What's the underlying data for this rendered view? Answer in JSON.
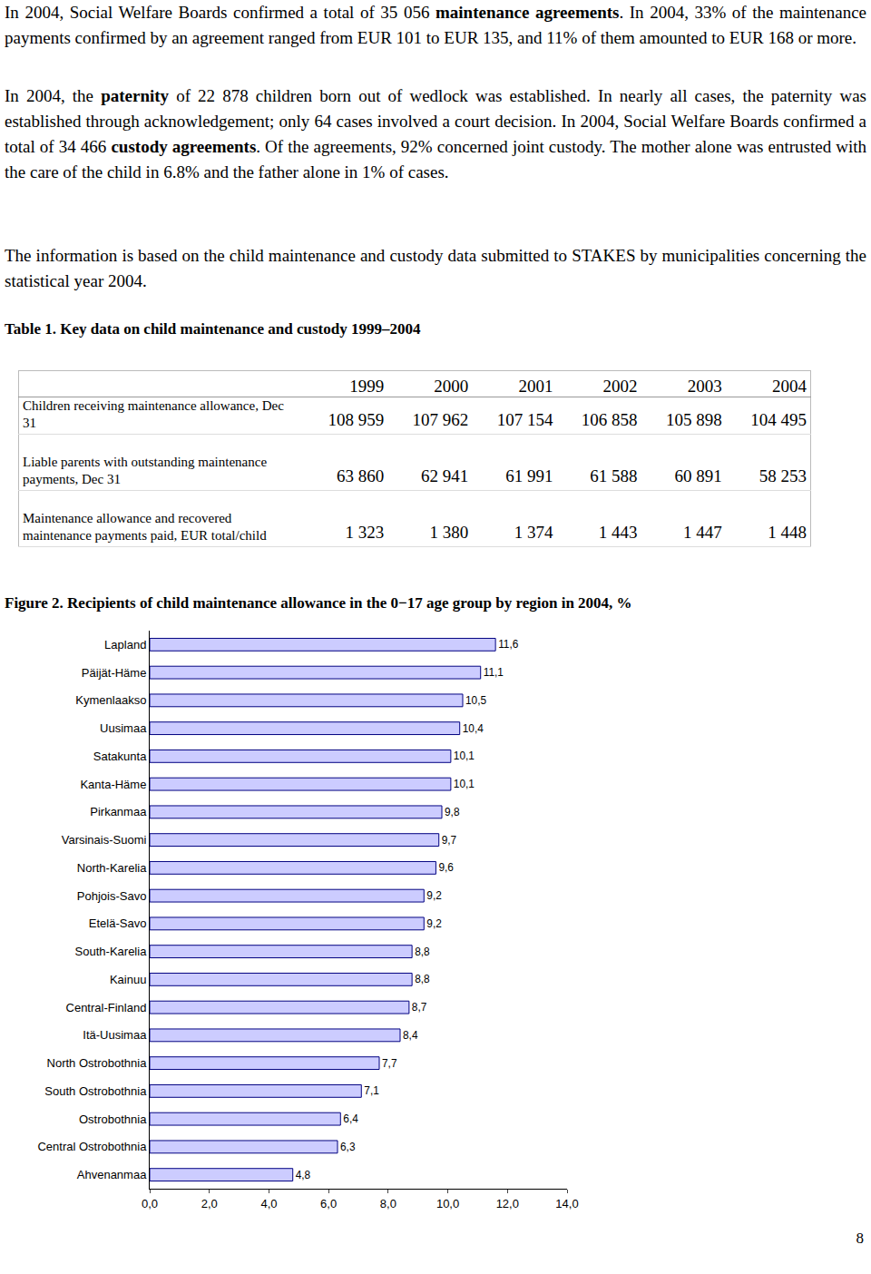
{
  "paragraphs": [
    [
      {
        "text": "In 2004, Social Welfare Boards confirmed a total of 35 056 ",
        "bold": false
      },
      {
        "text": "maintenance agreements",
        "bold": true
      },
      {
        "text": ". In 2004, 33% of the maintenance payments confirmed by an agreement ranged from EUR 101 to EUR 135, and 11% of them amounted to EUR 168 or more.",
        "bold": false
      }
    ],
    [
      {
        "text": "In 2004, the ",
        "bold": false
      },
      {
        "text": "paternity",
        "bold": true
      },
      {
        "text": " of 22 878 children born out of wedlock was established. In nearly all cases, the paternity was established through acknowledgement; only 64 cases involved a court decision. In 2004, Social Welfare Boards confirmed a total of 34 466 ",
        "bold": false
      },
      {
        "text": "custody agreements",
        "bold": true
      },
      {
        "text": ". Of the agreements, 92% concerned joint custody. The mother alone was entrusted with the care of the child in 6.8% and the father alone in 1% of cases.",
        "bold": false
      }
    ],
    [
      {
        "text": "The information is based on the child maintenance and custody data submitted to STAKES by municipalities concerning the statistical year 2004.",
        "bold": false
      }
    ]
  ],
  "table": {
    "title": "Table 1. Key data on child maintenance and custody 1999–2004",
    "header": [
      "1999",
      "2000",
      "2001",
      "2002",
      "2003",
      "2004"
    ],
    "rows": [
      [
        "Children receiving maintenance allowance, Dec 31",
        "108 959",
        "107 962",
        "107 154",
        "106 858",
        "105 898",
        "104 495"
      ],
      [
        "Liable parents with outstanding maintenance payments, Dec 31",
        "63 860",
        "62 941",
        "61 991",
        "61 588",
        "60 891",
        "58 253"
      ],
      [
        "Maintenance allowance and recovered maintenance payments paid, EUR total/child",
        "1 323",
        "1 380",
        "1 374",
        "1 443",
        "1 447",
        "1 448"
      ]
    ]
  },
  "chart_data": {
    "type": "bar",
    "title": "Figure 2. Recipients of child maintenance allowance in the 0−17 age group by region in 2004, %",
    "orientation": "horizontal",
    "categories": [
      "Lapland",
      "Päijät-Häme",
      "Kymenlaakso",
      "Uusimaa",
      "Satakunta",
      "Kanta-Häme",
      "Pirkanmaa",
      "Varsinais-Suomi",
      "North-Karelia",
      "Pohjois-Savo",
      "Etelä-Savo",
      "South-Karelia",
      "Kainuu",
      "Central-Finland",
      "Itä-Uusimaa",
      "North Ostrobothnia",
      "South Ostrobothnia",
      "Ostrobothnia",
      "Central Ostrobothnia",
      "Ahvenanmaa"
    ],
    "values": [
      11.6,
      11.1,
      10.5,
      10.4,
      10.1,
      10.1,
      9.8,
      9.7,
      9.6,
      9.2,
      9.2,
      8.8,
      8.8,
      8.7,
      8.4,
      7.7,
      7.1,
      6.4,
      6.3,
      4.8
    ],
    "value_labels": [
      "11,6",
      "11,1",
      "10,5",
      "10,4",
      "10,1",
      "10,1",
      "9,8",
      "9,7",
      "9,6",
      "9,2",
      "9,2",
      "8,8",
      "8,8",
      "8,7",
      "8,4",
      "7,7",
      "7,1",
      "6,4",
      "6,3",
      "4,8"
    ],
    "data_labels": true,
    "color": "#ccccff",
    "xlim": [
      0,
      14
    ],
    "xticks": [
      {
        "value": 0,
        "label": "0,0"
      },
      {
        "value": 2,
        "label": "2,0"
      },
      {
        "value": 4,
        "label": "4,0"
      },
      {
        "value": 6,
        "label": "6,0"
      },
      {
        "value": 8,
        "label": "8,0"
      },
      {
        "value": 10,
        "label": "10,0"
      },
      {
        "value": 12,
        "label": "12,0"
      },
      {
        "value": 14,
        "label": "14,0"
      }
    ],
    "grid": false
  },
  "page_number": "8"
}
